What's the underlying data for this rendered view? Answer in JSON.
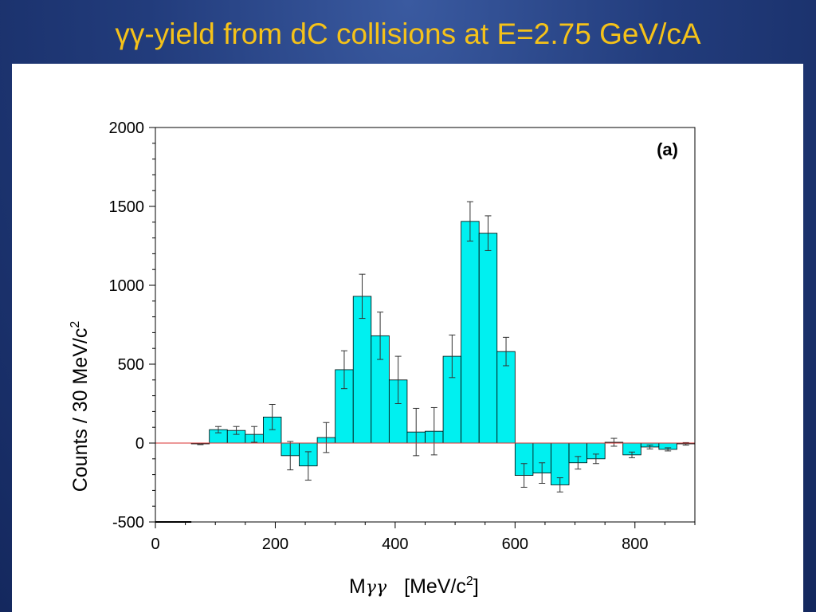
{
  "slide": {
    "title": "γγ-yield from dC collisions at E=2.75 GeV/cA"
  },
  "colors": {
    "background": "#223c7c",
    "title": "#f5c219",
    "bar_fill": "#00f0f0",
    "bar_stroke": "#000000",
    "zero_line": "#d83030"
  },
  "chart_data": {
    "type": "bar",
    "panel_label": "(a)",
    "xlabel_main": "M",
    "xlabel_sub": "γγ",
    "xlabel_unit": "[MeV/c",
    "xlabel_unit_sup": "2",
    "xlabel_unit_close": "]",
    "ylabel": "Counts / 30 MeV/c",
    "ylabel_sup": "2",
    "xlim": [
      0,
      900
    ],
    "ylim": [
      -500,
      2000
    ],
    "xticks": [
      0,
      200,
      400,
      600,
      800
    ],
    "yticks": [
      -500,
      0,
      500,
      1000,
      1500,
      2000
    ],
    "bin_width": 30,
    "zero_line": true,
    "grid": false,
    "pre_bins_line": {
      "x": [
        0,
        60
      ],
      "y": -500
    },
    "bins": [
      {
        "x0": 60,
        "y": -5,
        "err": 5
      },
      {
        "x0": 90,
        "y": 85,
        "err": 20
      },
      {
        "x0": 120,
        "y": 80,
        "err": 25
      },
      {
        "x0": 150,
        "y": 55,
        "err": 50
      },
      {
        "x0": 180,
        "y": 165,
        "err": 80
      },
      {
        "x0": 210,
        "y": -80,
        "err": 90
      },
      {
        "x0": 240,
        "y": -145,
        "err": 90
      },
      {
        "x0": 270,
        "y": 35,
        "err": 95
      },
      {
        "x0": 300,
        "y": 465,
        "err": 120
      },
      {
        "x0": 330,
        "y": 930,
        "err": 140
      },
      {
        "x0": 360,
        "y": 680,
        "err": 150
      },
      {
        "x0": 390,
        "y": 400,
        "err": 150
      },
      {
        "x0": 420,
        "y": 70,
        "err": 150
      },
      {
        "x0": 450,
        "y": 75,
        "err": 150
      },
      {
        "x0": 480,
        "y": 550,
        "err": 135
      },
      {
        "x0": 510,
        "y": 1405,
        "err": 125
      },
      {
        "x0": 540,
        "y": 1330,
        "err": 110
      },
      {
        "x0": 570,
        "y": 580,
        "err": 90
      },
      {
        "x0": 600,
        "y": -205,
        "err": 75
      },
      {
        "x0": 630,
        "y": -190,
        "err": 65
      },
      {
        "x0": 660,
        "y": -265,
        "err": 45
      },
      {
        "x0": 690,
        "y": -125,
        "err": 40
      },
      {
        "x0": 720,
        "y": -100,
        "err": 30
      },
      {
        "x0": 750,
        "y": 5,
        "err": 25
      },
      {
        "x0": 780,
        "y": -75,
        "err": 18
      },
      {
        "x0": 810,
        "y": -25,
        "err": 12
      },
      {
        "x0": 840,
        "y": -40,
        "err": 10
      },
      {
        "x0": 870,
        "y": -5,
        "err": 8
      }
    ]
  }
}
